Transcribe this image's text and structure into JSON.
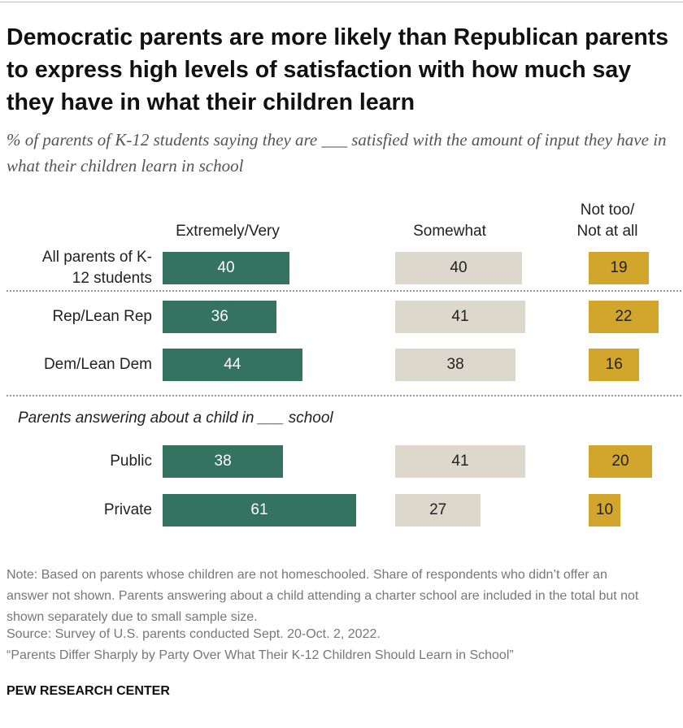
{
  "chart_data": {
    "type": "bar",
    "title": "Democratic parents are more likely than Republican parents to express high levels of satisfaction with how much say they have in what their children learn",
    "subtitle": "% of parents of K-12 students saying they are ___ satisfied with the amount of input they have in what their children learn in school",
    "categories": [
      "All parents of K-12 students",
      "Rep/Lean Rep",
      "Dem/Lean Dem",
      "Public",
      "Private"
    ],
    "subheading": "Parents answering about a child in ___ school",
    "series": [
      {
        "name": "Extremely/Very",
        "color": "#33735f",
        "values": [
          40,
          36,
          44,
          38,
          61
        ]
      },
      {
        "name": "Somewhat",
        "color": "#dcd8cc",
        "values": [
          40,
          41,
          38,
          41,
          27
        ]
      },
      {
        "name": "Not too/ Not at all",
        "color": "#d2a52c",
        "values": [
          19,
          22,
          16,
          20,
          10
        ]
      }
    ],
    "note": "Note: Based on parents whose children are not homeschooled. Share of respondents who didn’t offer an answer not shown. Parents answering about a child attending a charter school are included in the total but not shown separately due to small sample size.",
    "source": "Source: Survey of U.S. parents conducted Sept. 20-Oct. 2, 2022.",
    "citation": "“Parents Differ Sharply by Party Over What Their K-12 Children Should Learn in School”",
    "brand": "PEW RESEARCH CENTER"
  }
}
